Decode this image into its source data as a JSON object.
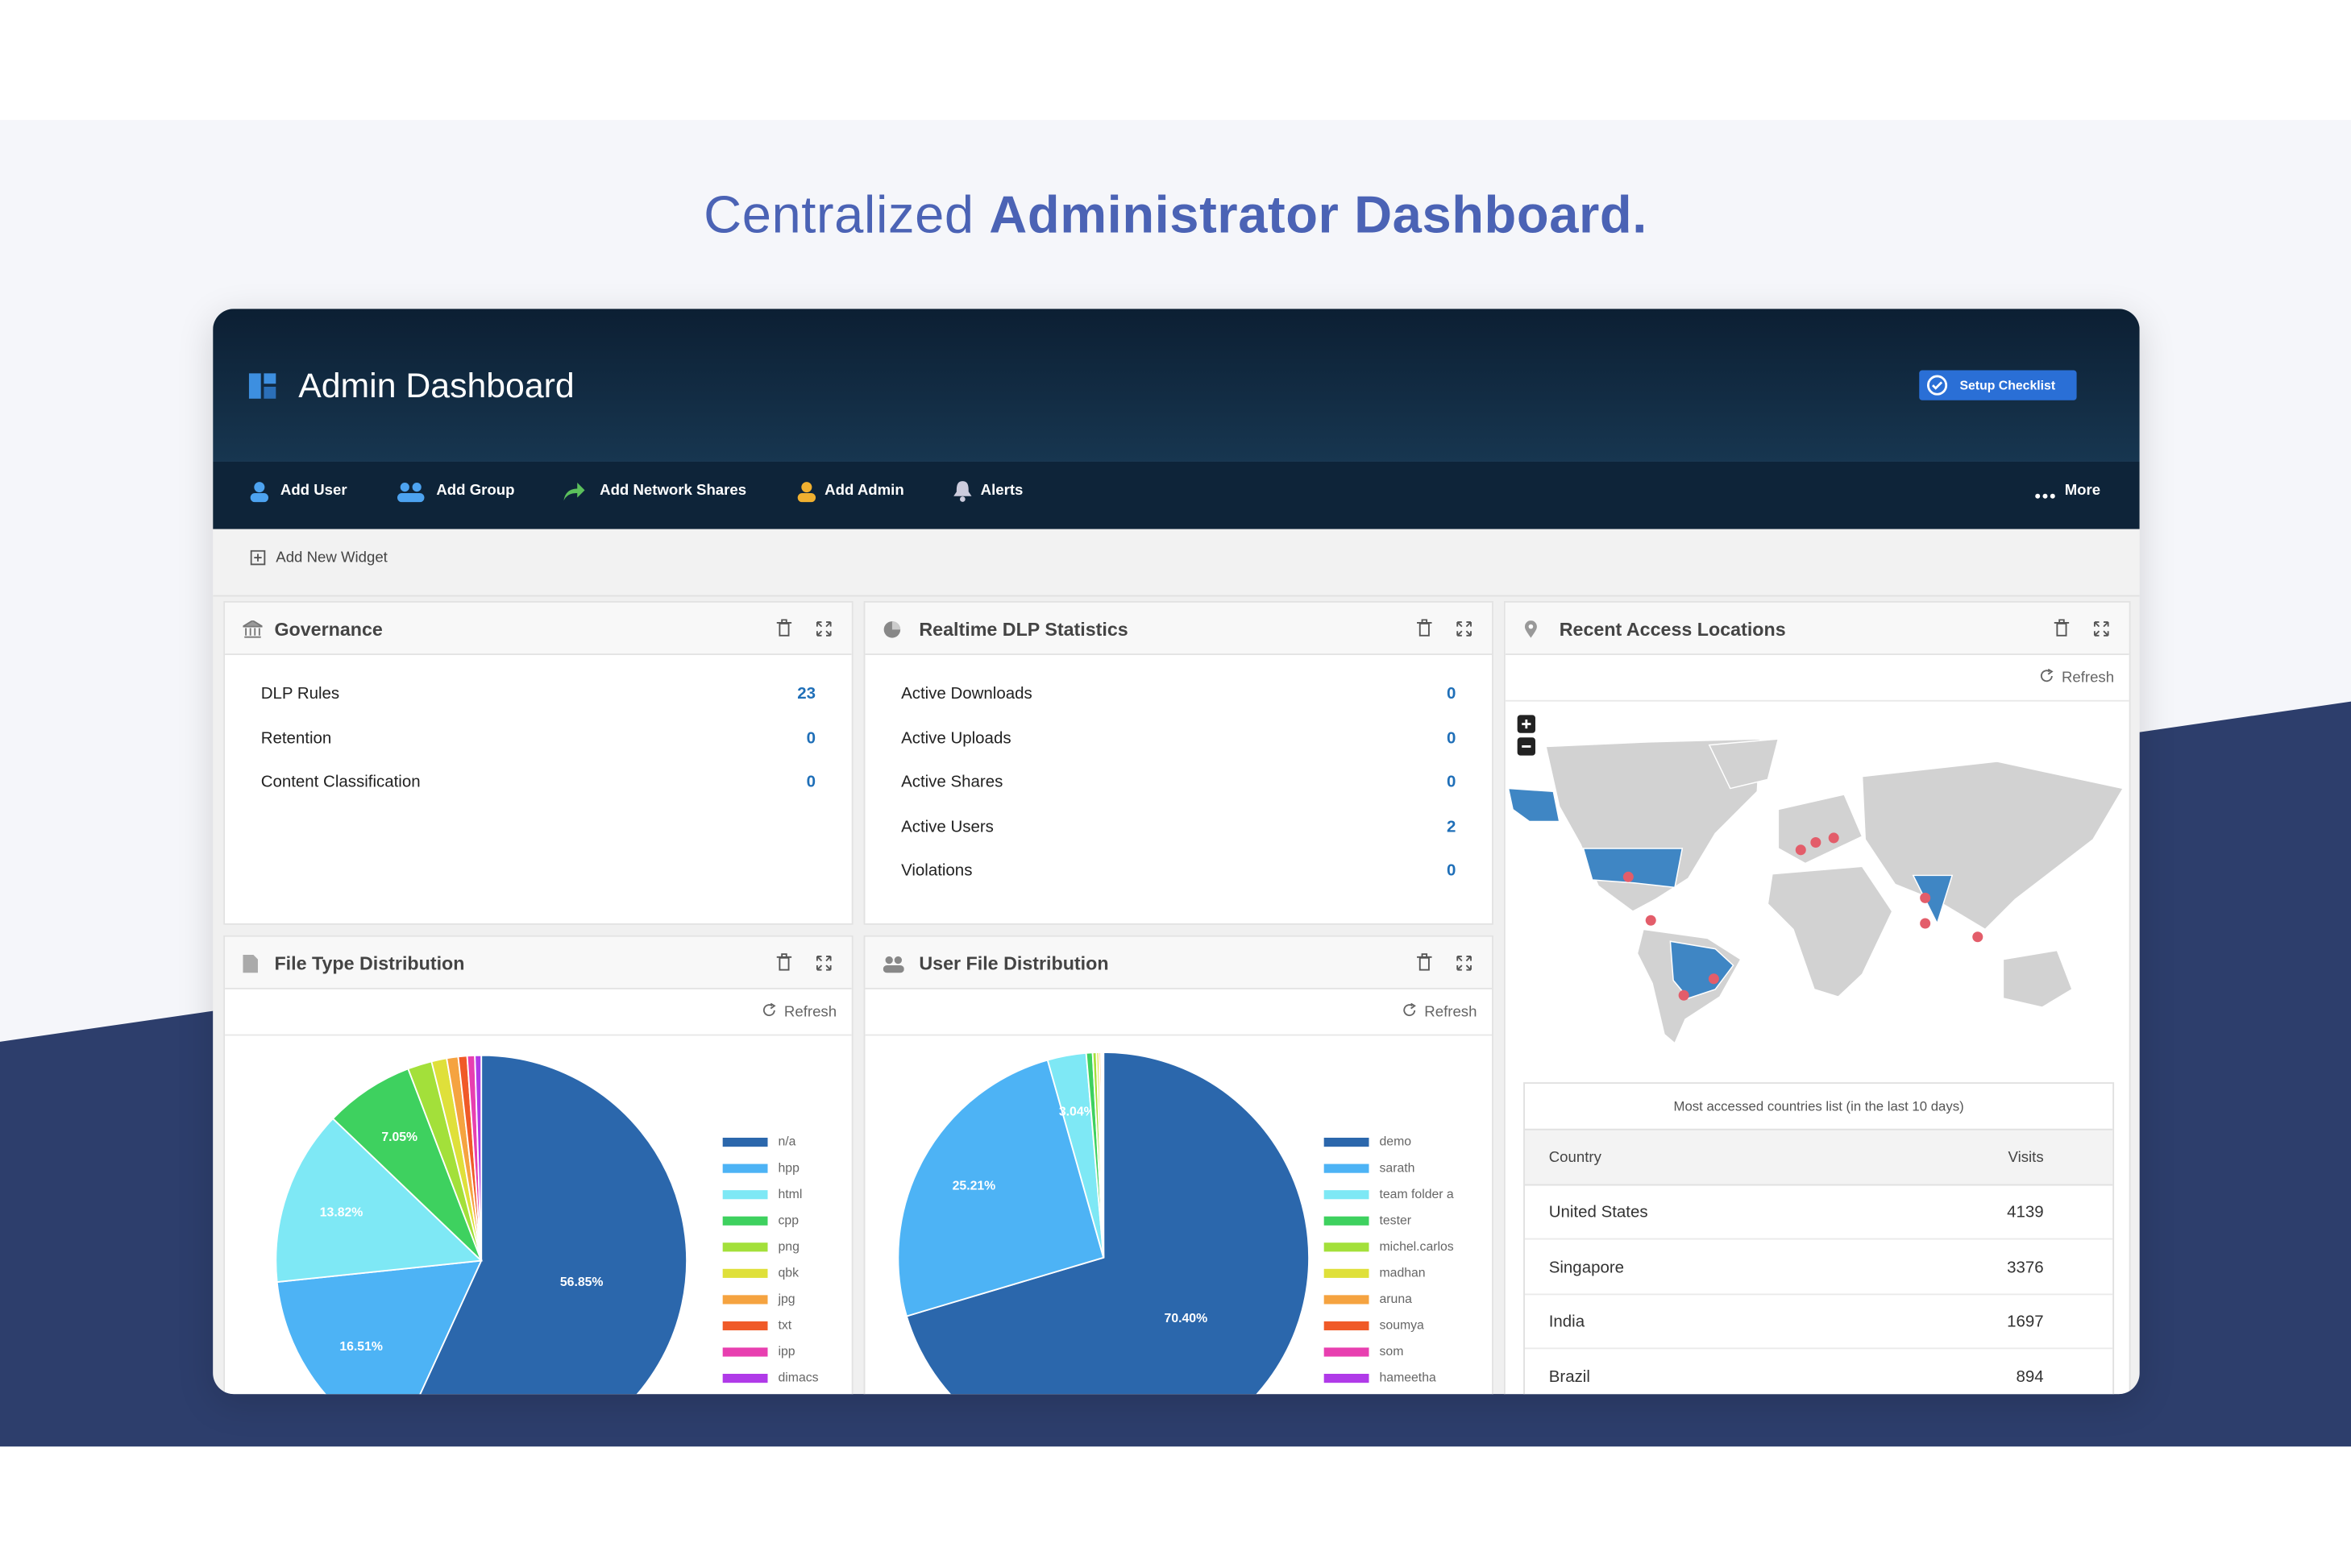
{
  "page_title": {
    "light": "Centralized",
    "bold": "Administrator Dashboard."
  },
  "header": {
    "title": "Admin Dashboard",
    "button": "Setup Checklist"
  },
  "nav": [
    "Add User",
    "Add Group",
    "Add Network Shares",
    "Add Admin",
    "Alerts"
  ],
  "nav_more": "More",
  "toolbar": "Add New Widget",
  "governance": {
    "title": "Governance",
    "rows": [
      [
        "DLP Rules",
        23
      ],
      [
        "Retention",
        0
      ],
      [
        "Content Classification",
        0
      ]
    ]
  },
  "dlp": {
    "title": "Realtime DLP Statistics",
    "rows": [
      [
        "Active Downloads",
        0
      ],
      [
        "Active Uploads",
        0
      ],
      [
        "Active Shares",
        0
      ],
      [
        "Active Users",
        2
      ],
      [
        "Violations",
        0
      ]
    ]
  },
  "locations": {
    "title": "Recent Access Locations",
    "refresh": "Refresh",
    "caption": "Most accessed countries list (in the last 10 days)",
    "columns": [
      "Country",
      "Visits"
    ],
    "rows": [
      [
        "United States",
        4139
      ],
      [
        "Singapore",
        3376
      ],
      [
        "India",
        1697
      ],
      [
        "Brazil",
        894
      ]
    ]
  },
  "file_types": {
    "title": "File Type Distribution",
    "refresh": "Refresh",
    "chart_data": {
      "type": "pie",
      "categories": [
        "n/a",
        "hpp",
        "html",
        "cpp",
        "png",
        "qbk",
        "jpg",
        "txt",
        "ipp",
        "dimacs"
      ],
      "values": [
        56.85,
        16.51,
        13.82,
        7.05,
        1.9,
        1.2,
        0.9,
        0.7,
        0.6,
        0.5
      ],
      "value_labels": [
        "56.85%",
        "16.51%",
        "13.82%",
        "7.05%",
        null,
        null,
        null,
        null,
        null,
        null
      ],
      "colors": [
        "#2b67ac",
        "#4db3f5",
        "#7ee8f5",
        "#3ed15f",
        "#a3e03a",
        "#dfe03a",
        "#f5a340",
        "#f05a28",
        "#e83fb0",
        "#b03ae8"
      ]
    }
  },
  "user_files": {
    "title": "User File Distribution",
    "refresh": "Refresh",
    "chart_data": {
      "type": "pie",
      "categories": [
        "demo",
        "sarath",
        "team folder a",
        "tester",
        "michel.carlos",
        "madhan",
        "aruna",
        "soumya",
        "som",
        "hameetha"
      ],
      "values": [
        70.4,
        25.21,
        3.04,
        0.5,
        0.3,
        0.2,
        0.15,
        0.1,
        0.05,
        0.05
      ],
      "value_labels": [
        "70.40%",
        "25.21%",
        "3.04%",
        null,
        null,
        null,
        null,
        null,
        null,
        null
      ],
      "colors": [
        "#2b67ac",
        "#4db3f5",
        "#7ee8f5",
        "#3ed15f",
        "#a3e03a",
        "#dfe03a",
        "#f5a340",
        "#f05a28",
        "#e83fb0",
        "#b03ae8"
      ]
    }
  }
}
